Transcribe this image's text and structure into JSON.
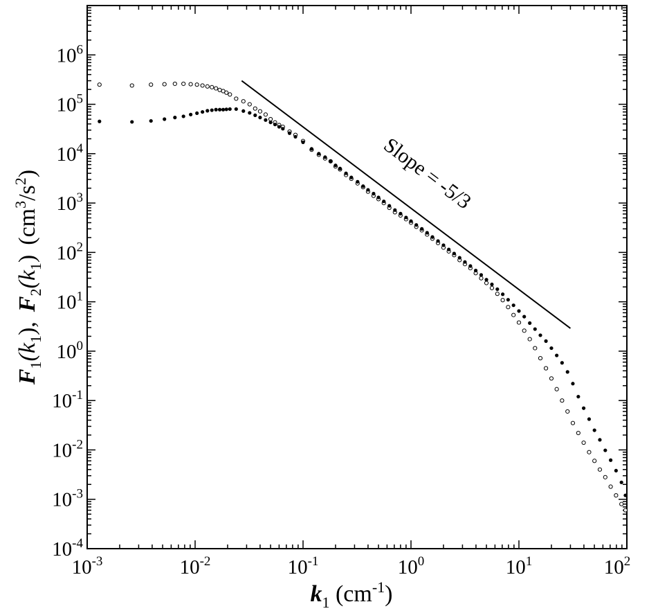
{
  "chart_data": {
    "type": "scatter",
    "title": "",
    "xlabel": {
      "base": "k",
      "sub": "1",
      "unit": " (cm",
      "unit_sup": "-1",
      "unit_end": ")"
    },
    "ylabel": {
      "f1": "F",
      "f1_sub": "1",
      "f1_open": "(k",
      "f1_arg_sub": "1",
      "f1_close": "),",
      "f2": "F",
      "f2_sub": "2",
      "f2_open": "(k",
      "f2_arg_sub": "1",
      "f2_close": ")",
      "unit": "(cm",
      "unit_sup": "3",
      "unit_mid": "/s",
      "unit_sup2": "2",
      "unit_end": ")"
    },
    "x_scale": "log",
    "y_scale": "log",
    "xlim": [
      0.001,
      100
    ],
    "ylim": [
      0.0001,
      10000000
    ],
    "x_ticks": [
      {
        "base": "10",
        "exp": "-3",
        "value": 0.001
      },
      {
        "base": "10",
        "exp": "-2",
        "value": 0.01
      },
      {
        "base": "10",
        "exp": "-1",
        "value": 0.1
      },
      {
        "base": "10",
        "exp": "0",
        "value": 1
      },
      {
        "base": "10",
        "exp": "1",
        "value": 10
      },
      {
        "base": "10",
        "exp": "2",
        "value": 100
      }
    ],
    "y_ticks": [
      {
        "base": "10",
        "exp": "-4",
        "value": 0.0001
      },
      {
        "base": "10",
        "exp": "-3",
        "value": 0.001
      },
      {
        "base": "10",
        "exp": "-2",
        "value": 0.01
      },
      {
        "base": "10",
        "exp": "-1",
        "value": 0.1
      },
      {
        "base": "10",
        "exp": "0",
        "value": 1
      },
      {
        "base": "10",
        "exp": "1",
        "value": 10
      },
      {
        "base": "10",
        "exp": "2",
        "value": 100
      },
      {
        "base": "10",
        "exp": "3",
        "value": 1000
      },
      {
        "base": "10",
        "exp": "4",
        "value": 10000
      },
      {
        "base": "10",
        "exp": "5",
        "value": 100000
      },
      {
        "base": "10",
        "exp": "6",
        "value": 1000000
      }
    ],
    "grid": false,
    "annotation": {
      "text": "Slope = -5/3"
    },
    "reference_line": {
      "x": [
        0.027,
        30
      ],
      "y": [
        300000,
        2.9
      ]
    },
    "series": [
      {
        "marker": "open-circle",
        "points": [
          [
            0.0013,
            250000
          ],
          [
            0.0026,
            240000
          ],
          [
            0.0039,
            250000
          ],
          [
            0.0052,
            255000
          ],
          [
            0.0065,
            260000
          ],
          [
            0.0078,
            260000
          ],
          [
            0.0091,
            255000
          ],
          [
            0.0104,
            250000
          ],
          [
            0.0117,
            240000
          ],
          [
            0.013,
            230000
          ],
          [
            0.0143,
            222000
          ],
          [
            0.0156,
            210000
          ],
          [
            0.0169,
            195000
          ],
          [
            0.0182,
            185000
          ],
          [
            0.0195,
            172000
          ],
          [
            0.021,
            158000
          ],
          [
            0.024,
            130000
          ],
          [
            0.028,
            115000
          ],
          [
            0.032,
            100000
          ],
          [
            0.036,
            82000
          ],
          [
            0.04,
            72000
          ],
          [
            0.045,
            62000
          ],
          [
            0.05,
            50000
          ],
          [
            0.055,
            43000
          ],
          [
            0.06,
            38000
          ],
          [
            0.065,
            35000
          ],
          [
            0.075,
            28000
          ],
          [
            0.085,
            24000
          ],
          [
            0.1,
            18000
          ],
          [
            0.12,
            12000
          ],
          [
            0.14,
            9500
          ],
          [
            0.16,
            8000
          ],
          [
            0.18,
            7000
          ],
          [
            0.2,
            5500
          ],
          [
            0.22,
            4800
          ],
          [
            0.25,
            3700
          ],
          [
            0.28,
            3100
          ],
          [
            0.32,
            2500
          ],
          [
            0.36,
            2100
          ],
          [
            0.4,
            1700
          ],
          [
            0.45,
            1400
          ],
          [
            0.5,
            1200
          ],
          [
            0.56,
            1000
          ],
          [
            0.63,
            800
          ],
          [
            0.71,
            650
          ],
          [
            0.8,
            560
          ],
          [
            0.9,
            470
          ],
          [
            1.0,
            400
          ],
          [
            1.12,
            330
          ],
          [
            1.26,
            280
          ],
          [
            1.41,
            230
          ],
          [
            1.58,
            190
          ],
          [
            1.78,
            155
          ],
          [
            2.0,
            125
          ],
          [
            2.24,
            105
          ],
          [
            2.51,
            88
          ],
          [
            2.82,
            70
          ],
          [
            3.16,
            58
          ],
          [
            3.55,
            48
          ],
          [
            3.98,
            38
          ],
          [
            4.47,
            30
          ],
          [
            5.0,
            24
          ],
          [
            5.62,
            19
          ],
          [
            6.31,
            14.5
          ],
          [
            7.08,
            10.8
          ],
          [
            7.94,
            7.8
          ],
          [
            8.91,
            5.4
          ],
          [
            10.0,
            3.8
          ],
          [
            11.2,
            2.6
          ],
          [
            12.6,
            1.75
          ],
          [
            14.1,
            1.15
          ],
          [
            15.8,
            0.72
          ],
          [
            17.8,
            0.45
          ],
          [
            20,
            0.28
          ],
          [
            22.4,
            0.17
          ],
          [
            25.1,
            0.1
          ],
          [
            28.2,
            0.06
          ],
          [
            31.6,
            0.035
          ],
          [
            35.5,
            0.022
          ],
          [
            39.8,
            0.014
          ],
          [
            44.7,
            0.009
          ],
          [
            50.1,
            0.006
          ],
          [
            56.2,
            0.004
          ],
          [
            63.1,
            0.0028
          ],
          [
            70.8,
            0.0018
          ],
          [
            79.4,
            0.0012
          ],
          [
            89.1,
            0.0008
          ],
          [
            97,
            0.0006
          ]
        ]
      },
      {
        "marker": "filled-circle",
        "points": [
          [
            0.0013,
            45000
          ],
          [
            0.0026,
            44000
          ],
          [
            0.0039,
            46000
          ],
          [
            0.0052,
            50000
          ],
          [
            0.0065,
            54000
          ],
          [
            0.0078,
            57000
          ],
          [
            0.0091,
            62000
          ],
          [
            0.0104,
            66000
          ],
          [
            0.0117,
            70000
          ],
          [
            0.013,
            74000
          ],
          [
            0.0143,
            76000
          ],
          [
            0.0156,
            78000
          ],
          [
            0.0169,
            78000
          ],
          [
            0.0182,
            78000
          ],
          [
            0.0195,
            79000
          ],
          [
            0.021,
            80000
          ],
          [
            0.024,
            80000
          ],
          [
            0.028,
            73000
          ],
          [
            0.032,
            67000
          ],
          [
            0.036,
            60000
          ],
          [
            0.04,
            54000
          ],
          [
            0.045,
            48000
          ],
          [
            0.05,
            43000
          ],
          [
            0.055,
            39000
          ],
          [
            0.06,
            35000
          ],
          [
            0.065,
            32000
          ],
          [
            0.075,
            26000
          ],
          [
            0.085,
            22000
          ],
          [
            0.1,
            17000
          ],
          [
            0.12,
            12500
          ],
          [
            0.14,
            10000
          ],
          [
            0.16,
            8500
          ],
          [
            0.18,
            7000
          ],
          [
            0.2,
            5800
          ],
          [
            0.22,
            5000
          ],
          [
            0.25,
            4000
          ],
          [
            0.28,
            3300
          ],
          [
            0.32,
            2700
          ],
          [
            0.36,
            2200
          ],
          [
            0.4,
            1850
          ],
          [
            0.45,
            1550
          ],
          [
            0.5,
            1300
          ],
          [
            0.56,
            1080
          ],
          [
            0.63,
            880
          ],
          [
            0.71,
            720
          ],
          [
            0.8,
            610
          ],
          [
            0.9,
            510
          ],
          [
            1.0,
            430
          ],
          [
            1.12,
            360
          ],
          [
            1.26,
            300
          ],
          [
            1.41,
            250
          ],
          [
            1.58,
            205
          ],
          [
            1.78,
            170
          ],
          [
            2.0,
            140
          ],
          [
            2.24,
            115
          ],
          [
            2.51,
            95
          ],
          [
            2.82,
            78
          ],
          [
            3.16,
            64
          ],
          [
            3.55,
            53
          ],
          [
            3.98,
            43
          ],
          [
            4.47,
            35
          ],
          [
            5.0,
            28
          ],
          [
            5.62,
            22.5
          ],
          [
            6.31,
            18
          ],
          [
            7.08,
            14.2
          ],
          [
            7.94,
            11
          ],
          [
            8.91,
            8.5
          ],
          [
            10.0,
            6.5
          ],
          [
            11.2,
            5
          ],
          [
            12.6,
            3.7
          ],
          [
            14.1,
            2.8
          ],
          [
            15.8,
            2.1
          ],
          [
            17.8,
            1.6
          ],
          [
            20,
            1.15
          ],
          [
            22.4,
            0.82
          ],
          [
            25.1,
            0.58
          ],
          [
            28.2,
            0.38
          ],
          [
            31.6,
            0.22
          ],
          [
            35.5,
            0.12
          ],
          [
            39.8,
            0.07
          ],
          [
            44.7,
            0.042
          ],
          [
            50.1,
            0.025
          ],
          [
            56.2,
            0.016
          ],
          [
            63.1,
            0.0098
          ],
          [
            70.8,
            0.0062
          ],
          [
            79.4,
            0.0038
          ],
          [
            89.1,
            0.0022
          ],
          [
            97,
            0.0012
          ]
        ]
      }
    ]
  }
}
